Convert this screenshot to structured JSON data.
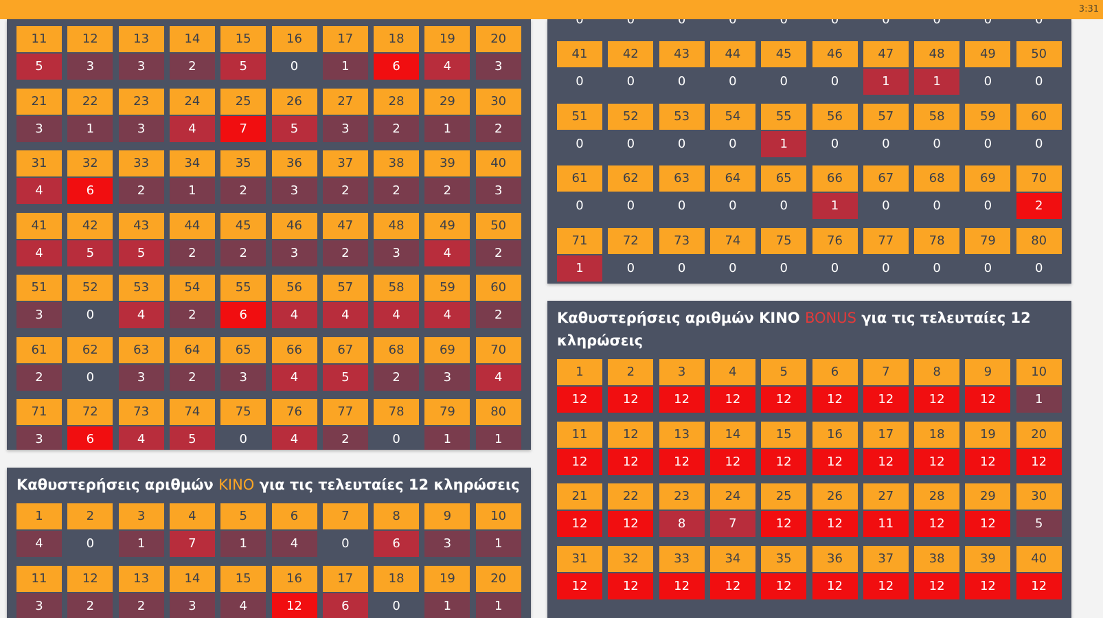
{
  "status": {
    "time": "3:31"
  },
  "colors": {
    "bar": "#fba524",
    "panel": "#4b5263",
    "num_bg": "#fba524",
    "zero": "#4b5263",
    "low": "#7a3c4d",
    "mid": "#b82d3c",
    "high": "#f10e10"
  },
  "panels": {
    "top_left": {
      "rows": [
        {
          "nums": [
            "11",
            "12",
            "13",
            "14",
            "15",
            "16",
            "17",
            "18",
            "19",
            "20"
          ],
          "vals": [
            "5",
            "3",
            "3",
            "2",
            "5",
            "0",
            "1",
            "6",
            "4",
            "3"
          ]
        },
        {
          "nums": [
            "21",
            "22",
            "23",
            "24",
            "25",
            "26",
            "27",
            "28",
            "29",
            "30"
          ],
          "vals": [
            "3",
            "1",
            "3",
            "4",
            "7",
            "5",
            "3",
            "2",
            "1",
            "2"
          ]
        },
        {
          "nums": [
            "31",
            "32",
            "33",
            "34",
            "35",
            "36",
            "37",
            "38",
            "39",
            "40"
          ],
          "vals": [
            "4",
            "6",
            "2",
            "1",
            "2",
            "3",
            "2",
            "2",
            "2",
            "3"
          ]
        },
        {
          "nums": [
            "41",
            "42",
            "43",
            "44",
            "45",
            "46",
            "47",
            "48",
            "49",
            "50"
          ],
          "vals": [
            "4",
            "5",
            "5",
            "2",
            "2",
            "3",
            "2",
            "3",
            "4",
            "2"
          ]
        },
        {
          "nums": [
            "51",
            "52",
            "53",
            "54",
            "55",
            "56",
            "57",
            "58",
            "59",
            "60"
          ],
          "vals": [
            "3",
            "0",
            "4",
            "2",
            "6",
            "4",
            "4",
            "4",
            "4",
            "2"
          ]
        },
        {
          "nums": [
            "61",
            "62",
            "63",
            "64",
            "65",
            "66",
            "67",
            "68",
            "69",
            "70"
          ],
          "vals": [
            "2",
            "0",
            "3",
            "2",
            "3",
            "4",
            "5",
            "2",
            "3",
            "4"
          ]
        },
        {
          "nums": [
            "71",
            "72",
            "73",
            "74",
            "75",
            "76",
            "77",
            "78",
            "79",
            "80"
          ],
          "vals": [
            "3",
            "6",
            "4",
            "5",
            "0",
            "4",
            "2",
            "0",
            "1",
            "1"
          ]
        }
      ],
      "levels": [
        [
          "mid",
          "low",
          "low",
          "low",
          "mid",
          "zero",
          "low",
          "high",
          "mid",
          "low"
        ],
        [
          "low",
          "low",
          "low",
          "mid",
          "high",
          "mid",
          "low",
          "low",
          "low",
          "low"
        ],
        [
          "mid",
          "high",
          "low",
          "low",
          "low",
          "low",
          "low",
          "low",
          "low",
          "low"
        ],
        [
          "mid",
          "mid",
          "mid",
          "low",
          "low",
          "low",
          "low",
          "low",
          "mid",
          "low"
        ],
        [
          "low",
          "zero",
          "mid",
          "low",
          "high",
          "mid",
          "mid",
          "mid",
          "mid",
          "low"
        ],
        [
          "low",
          "zero",
          "low",
          "low",
          "low",
          "mid",
          "mid",
          "low",
          "low",
          "mid"
        ],
        [
          "low",
          "high",
          "mid",
          "mid",
          "zero",
          "mid",
          "low",
          "zero",
          "low",
          "low"
        ]
      ]
    },
    "top_right": {
      "partial_vals": [
        "0",
        "0",
        "0",
        "0",
        "0",
        "0",
        "0",
        "0",
        "0",
        "0"
      ],
      "rows": [
        {
          "nums": [
            "41",
            "42",
            "43",
            "44",
            "45",
            "46",
            "47",
            "48",
            "49",
            "50"
          ],
          "vals": [
            "0",
            "0",
            "0",
            "0",
            "0",
            "0",
            "1",
            "1",
            "0",
            "0"
          ]
        },
        {
          "nums": [
            "51",
            "52",
            "53",
            "54",
            "55",
            "56",
            "57",
            "58",
            "59",
            "60"
          ],
          "vals": [
            "0",
            "0",
            "0",
            "0",
            "1",
            "0",
            "0",
            "0",
            "0",
            "0"
          ]
        },
        {
          "nums": [
            "61",
            "62",
            "63",
            "64",
            "65",
            "66",
            "67",
            "68",
            "69",
            "70"
          ],
          "vals": [
            "0",
            "0",
            "0",
            "0",
            "0",
            "1",
            "0",
            "0",
            "0",
            "2"
          ]
        },
        {
          "nums": [
            "71",
            "72",
            "73",
            "74",
            "75",
            "76",
            "77",
            "78",
            "79",
            "80"
          ],
          "vals": [
            "1",
            "0",
            "0",
            "0",
            "0",
            "0",
            "0",
            "0",
            "0",
            "0"
          ]
        }
      ],
      "levels": [
        [
          "zero",
          "zero",
          "zero",
          "zero",
          "zero",
          "zero",
          "mid",
          "mid",
          "zero",
          "zero"
        ],
        [
          "zero",
          "zero",
          "zero",
          "zero",
          "mid",
          "zero",
          "zero",
          "zero",
          "zero",
          "zero"
        ],
        [
          "zero",
          "zero",
          "zero",
          "zero",
          "zero",
          "mid",
          "zero",
          "zero",
          "zero",
          "high"
        ],
        [
          "mid",
          "zero",
          "zero",
          "zero",
          "zero",
          "zero",
          "zero",
          "zero",
          "zero",
          "zero"
        ]
      ]
    },
    "bottom_left": {
      "title_pre": "Καθυστερήσεις αριθμών ",
      "title_hl": "KINO",
      "title_post": " για τις τελευταίες 12 κληρώσεις",
      "rows": [
        {
          "nums": [
            "1",
            "2",
            "3",
            "4",
            "5",
            "6",
            "7",
            "8",
            "9",
            "10"
          ],
          "vals": [
            "4",
            "0",
            "1",
            "7",
            "1",
            "4",
            "0",
            "6",
            "3",
            "1"
          ]
        },
        {
          "nums": [
            "11",
            "12",
            "13",
            "14",
            "15",
            "16",
            "17",
            "18",
            "19",
            "20"
          ],
          "vals": [
            "3",
            "2",
            "2",
            "3",
            "4",
            "12",
            "6",
            "0",
            "1",
            "1"
          ]
        }
      ],
      "levels": [
        [
          "low",
          "zero",
          "low",
          "mid",
          "low",
          "low",
          "zero",
          "mid",
          "low",
          "low"
        ],
        [
          "low",
          "low",
          "low",
          "low",
          "low",
          "high",
          "mid",
          "zero",
          "low",
          "low"
        ]
      ]
    },
    "bottom_right": {
      "title_pre": "Καθυστερήσεις αριθμών KINO ",
      "title_hl": "BONUS",
      "title_post": " για τις τελευταίες 12",
      "title_line2": "κληρώσεις",
      "rows": [
        {
          "nums": [
            "1",
            "2",
            "3",
            "4",
            "5",
            "6",
            "7",
            "8",
            "9",
            "10"
          ],
          "vals": [
            "12",
            "12",
            "12",
            "12",
            "12",
            "12",
            "12",
            "12",
            "12",
            "1"
          ]
        },
        {
          "nums": [
            "11",
            "12",
            "13",
            "14",
            "15",
            "16",
            "17",
            "18",
            "19",
            "20"
          ],
          "vals": [
            "12",
            "12",
            "12",
            "12",
            "12",
            "12",
            "12",
            "12",
            "12",
            "12"
          ]
        },
        {
          "nums": [
            "21",
            "22",
            "23",
            "24",
            "25",
            "26",
            "27",
            "28",
            "29",
            "30"
          ],
          "vals": [
            "12",
            "12",
            "8",
            "7",
            "12",
            "12",
            "11",
            "12",
            "12",
            "5"
          ]
        },
        {
          "nums": [
            "31",
            "32",
            "33",
            "34",
            "35",
            "36",
            "37",
            "38",
            "39",
            "40"
          ],
          "vals": [
            "12",
            "12",
            "12",
            "12",
            "12",
            "12",
            "12",
            "12",
            "12",
            "12"
          ]
        }
      ],
      "levels": [
        [
          "high",
          "high",
          "high",
          "high",
          "high",
          "high",
          "high",
          "high",
          "high",
          "low"
        ],
        [
          "high",
          "high",
          "high",
          "high",
          "high",
          "high",
          "high",
          "high",
          "high",
          "high"
        ],
        [
          "high",
          "high",
          "mid",
          "mid",
          "high",
          "high",
          "high",
          "high",
          "high",
          "low"
        ],
        [
          "high",
          "high",
          "high",
          "high",
          "high",
          "high",
          "high",
          "high",
          "high",
          "high"
        ]
      ]
    }
  }
}
